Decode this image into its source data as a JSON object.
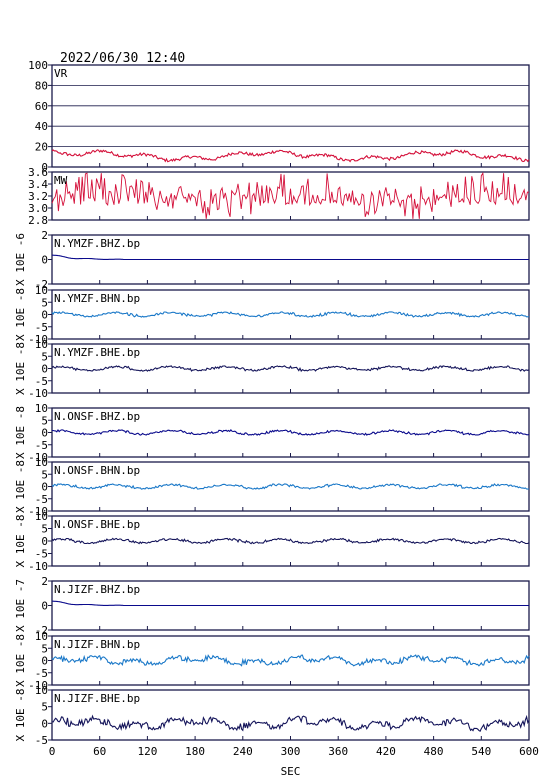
{
  "header": {
    "timestamp": "2022/06/30 12:40"
  },
  "colors": {
    "frame": "#1a1a4a",
    "grid": "#1a1a4a",
    "red": "#d4103a",
    "dark_blue": "#0a0a8c",
    "navy": "#14145a",
    "sky": "#1a78c8"
  },
  "chart_data": {
    "type": "line",
    "xlabel": "SEC",
    "xlim": [
      0,
      600
    ],
    "xticks": [
      "0",
      "60",
      "120",
      "180",
      "240",
      "300",
      "360",
      "420",
      "480",
      "540",
      "600"
    ],
    "panels": [
      {
        "name": "VR",
        "label": "VR",
        "ylim": [
          0,
          100
        ],
        "yticks": [
          "0",
          "20",
          "40",
          "60",
          "80",
          "100"
        ],
        "unit": "",
        "grid": true,
        "color": "red",
        "kind": "vr"
      },
      {
        "name": "MW",
        "label": "MW",
        "ylim": [
          2.8,
          3.6
        ],
        "yticks": [
          "2.8",
          "3.0",
          "3.2",
          "3.4",
          "3.6"
        ],
        "unit": "",
        "grid": false,
        "color": "red",
        "kind": "mw"
      },
      {
        "name": "N.YMZF.BHZ.bp",
        "label": "N.YMZF.BHZ.bp",
        "ylim": [
          -2,
          2
        ],
        "yticks": [
          "-2",
          "0",
          "2"
        ],
        "unit": "X 10E -6",
        "grid": false,
        "color": "dark_blue",
        "kind": "z"
      },
      {
        "name": "N.YMZF.BHN.bp",
        "label": "N.YMZF.BHN.bp",
        "ylim": [
          -10,
          10
        ],
        "yticks": [
          "-10",
          "-5",
          "0",
          "5",
          "10"
        ],
        "unit": "X 10E -8",
        "grid": false,
        "color": "sky",
        "kind": "h"
      },
      {
        "name": "N.YMZF.BHE.bp",
        "label": "N.YMZF.BHE.bp",
        "ylim": [
          -10,
          10
        ],
        "yticks": [
          "-10",
          "-5",
          "0",
          "5",
          "10"
        ],
        "unit": "X 10E -8",
        "grid": false,
        "color": "navy",
        "kind": "h"
      },
      {
        "name": "N.ONSF.BHZ.bp",
        "label": "N.ONSF.BHZ.bp",
        "ylim": [
          -10,
          10
        ],
        "yticks": [
          "-10",
          "-5",
          "0",
          "5",
          "10"
        ],
        "unit": "X 10E -8",
        "grid": false,
        "color": "dark_blue",
        "kind": "h"
      },
      {
        "name": "N.ONSF.BHN.bp",
        "label": "N.ONSF.BHN.bp",
        "ylim": [
          -10,
          10
        ],
        "yticks": [
          "-10",
          "-5",
          "0",
          "5",
          "10"
        ],
        "unit": "X 10E -8",
        "grid": false,
        "color": "sky",
        "kind": "h"
      },
      {
        "name": "N.ONSF.BHE.bp",
        "label": "N.ONSF.BHE.bp",
        "ylim": [
          -10,
          10
        ],
        "yticks": [
          "-10",
          "-5",
          "0",
          "5",
          "10"
        ],
        "unit": "X 10E -8",
        "grid": false,
        "color": "navy",
        "kind": "h"
      },
      {
        "name": "N.JIZF.BHZ.bp",
        "label": "N.JIZF.BHZ.bp",
        "ylim": [
          -2,
          2
        ],
        "yticks": [
          "-2",
          "0",
          "2"
        ],
        "unit": "X 10E -7",
        "grid": false,
        "color": "dark_blue",
        "kind": "z"
      },
      {
        "name": "N.JIZF.BHN.bp",
        "label": "N.JIZF.BHN.bp",
        "ylim": [
          -10,
          10
        ],
        "yticks": [
          "-10",
          "-5",
          "0",
          "5",
          "10"
        ],
        "unit": "X 10E -8",
        "grid": false,
        "color": "sky",
        "kind": "hbig"
      },
      {
        "name": "N.JIZF.BHE.bp",
        "label": "N.JIZF.BHE.bp",
        "ylim": [
          -5,
          10
        ],
        "yticks": [
          "-5",
          "0",
          "5",
          "10"
        ],
        "unit": "X 10E -8",
        "grid": false,
        "color": "navy",
        "kind": "hbig"
      }
    ]
  }
}
